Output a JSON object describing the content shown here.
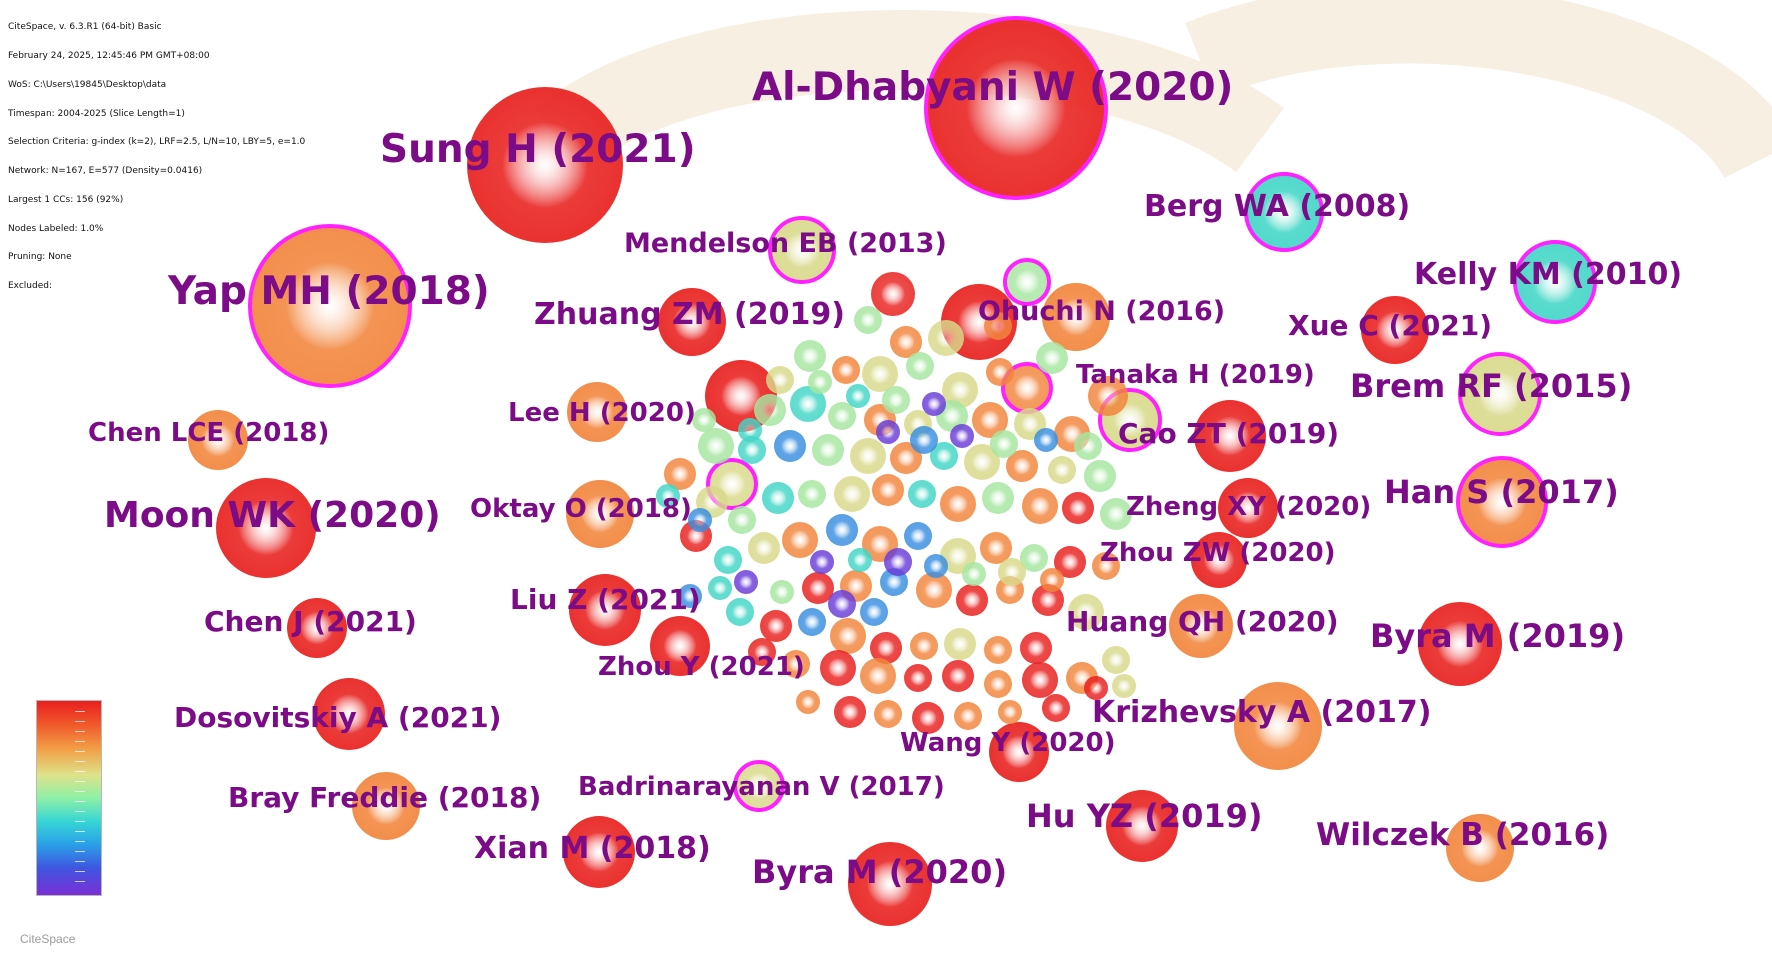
{
  "info_lines": [
    "CiteSpace, v. 6.3.R1 (64-bit) Basic",
    "February 24, 2025, 12:45:46 PM GMT+08:00",
    "WoS: C:\\Users\\19845\\Desktop\\data",
    "Timespan: 2004-2025 (Slice Length=1)",
    "Selection Criteria: g-index (k=2), LRF=2.5, L/N=10, LBY=5, e=1.0",
    "Network: N=167, E=577 (Density=0.0416)",
    "Largest 1 CCs: 156 (92%)",
    "Nodes Labeled: 1.0%",
    "Pruning: None",
    "Excluded:"
  ],
  "brand": "CiteSpace",
  "colors": {
    "label": "#7b0b86",
    "ring": "#ff22ff",
    "red": "#e8201e",
    "orange": "#f2853c",
    "yellow": "#d8d98a",
    "green": "#a6e6a0",
    "teal": "#42d6c6",
    "blue": "#3a8fe0",
    "purple": "#6a3ed8"
  },
  "cited_references": [
    "Al-Dhabyani W (2020)",
    "Sung H (2021)",
    "Yap MH (2018)",
    "Berg WA (2008)",
    "Mendelson EB (2013)",
    "Kelly KM (2010)",
    "Zhuang ZM (2019)",
    "Ohuchi N (2016)",
    "Xue C (2021)",
    "Tanaka H (2019)",
    "Brem RF (2015)",
    "Lee H (2020)",
    "Chen LCE (2018)",
    "Cao ZT (2019)",
    "Han S (2017)",
    "Moon WK (2020)",
    "Oktay O (2018)",
    "Zheng XY (2020)",
    "Zhou ZW (2020)",
    "Liu Z (2021)",
    "Chen J (2021)",
    "Huang QH (2020)",
    "Byra M (2019)",
    "Zhou Y (2021)",
    "Dosovitskiy A (2021)",
    "Krizhevsky A (2017)",
    "Wang Y (2020)",
    "Bray Freddie (2018)",
    "Badrinarayanan V (2017)",
    "Hu YZ (2019)",
    "Wilczek B (2016)",
    "Xian M (2018)",
    "Byra M (2020)"
  ],
  "legend": {
    "name": "timeline-color-scale"
  }
}
